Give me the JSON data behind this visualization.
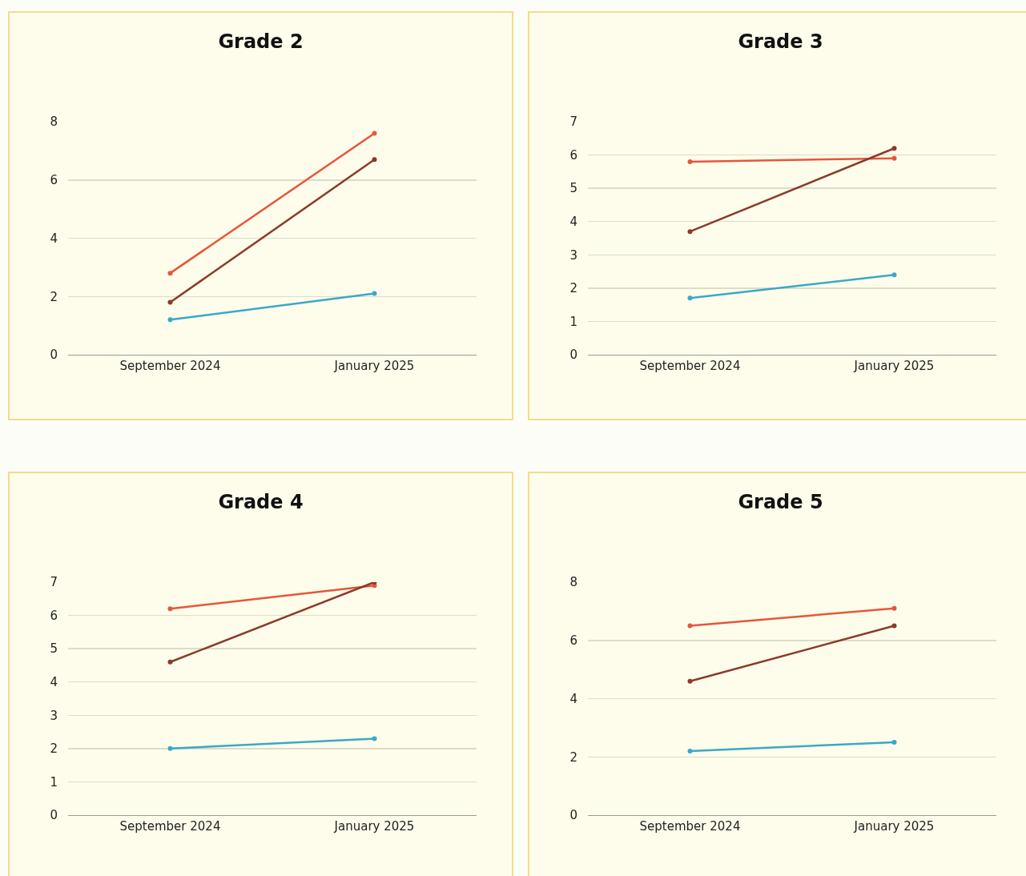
{
  "chart_data": [
    {
      "type": "line",
      "title": "Grade 2",
      "categories": [
        "September 2024",
        "January 2025"
      ],
      "series": [
        {
          "color": "#e8553a",
          "values": [
            2.8,
            7.6
          ]
        },
        {
          "color": "#8b3a2a",
          "values": [
            1.8,
            6.7
          ]
        },
        {
          "color": "#3aa8c8",
          "values": [
            1.2,
            2.1
          ]
        }
      ],
      "ylim": [
        0,
        8
      ],
      "yticks": [
        0,
        2,
        4,
        6,
        8
      ],
      "grid": "y",
      "marker": "circle"
    },
    {
      "type": "line",
      "title": "Grade 3",
      "categories": [
        "September 2024",
        "January 2025"
      ],
      "series": [
        {
          "color": "#e8553a",
          "values": [
            5.8,
            5.9
          ]
        },
        {
          "color": "#8b3a2a",
          "values": [
            3.7,
            6.2
          ]
        },
        {
          "color": "#3aa8c8",
          "values": [
            1.7,
            2.4
          ]
        }
      ],
      "ylim": [
        0,
        7
      ],
      "yticks": [
        0,
        1,
        2,
        3,
        4,
        5,
        6,
        7
      ],
      "grid": "y",
      "marker": "circle"
    },
    {
      "type": "line",
      "title": "Grade 4",
      "categories": [
        "September 2024",
        "January 2025"
      ],
      "series": [
        {
          "color": "#e8553a",
          "values": [
            6.2,
            6.9
          ]
        },
        {
          "color": "#8b3a2a",
          "values": [
            4.6,
            7.0
          ]
        },
        {
          "color": "#3aa8c8",
          "values": [
            2.0,
            2.3
          ]
        }
      ],
      "ylim": [
        0,
        7
      ],
      "yticks": [
        0,
        1,
        2,
        3,
        4,
        5,
        6,
        7
      ],
      "grid": "y",
      "marker": "circle"
    },
    {
      "type": "line",
      "title": "Grade 5",
      "categories": [
        "September 2024",
        "January 2025"
      ],
      "series": [
        {
          "color": "#e8553a",
          "values": [
            6.5,
            7.1
          ]
        },
        {
          "color": "#8b3a2a",
          "values": [
            4.6,
            6.5
          ]
        },
        {
          "color": "#3aa8c8",
          "values": [
            2.2,
            2.5
          ]
        }
      ],
      "ylim": [
        0,
        8
      ],
      "yticks": [
        0,
        2,
        4,
        6,
        8
      ],
      "grid": "y",
      "marker": "circle"
    }
  ]
}
